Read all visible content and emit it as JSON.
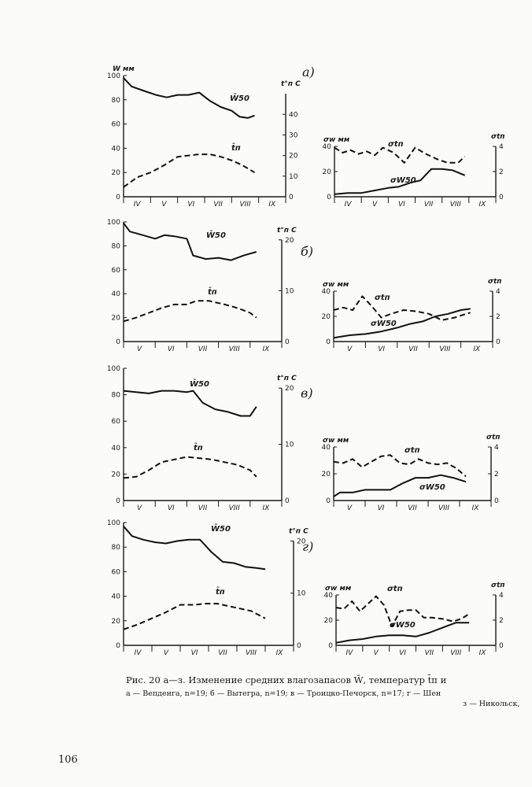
{
  "caption": {
    "line1": "Рис. 20 а—з. Изменение средних влагозапасов W̄, температур t̄п и",
    "line2": "а — Вепденга,  n=19;  б — Вытегра,  n=19;  в — Троицко-Печорск,  n=17;  г — Шен",
    "line3": "з — Никольск,"
  },
  "page_number": "106",
  "chart_data": [
    {
      "type": "line",
      "panel": "а",
      "side": "left",
      "title": "а)",
      "y_left_label": "W мм",
      "y_left_ticks": [
        "0",
        "20",
        "40",
        "60",
        "80",
        "100"
      ],
      "y_left_lim": [
        0,
        100
      ],
      "y_right_label": "t°п С",
      "y_right_ticks": [
        "0",
        "10",
        "20",
        "30",
        "40"
      ],
      "y_right_lim": [
        0,
        50
      ],
      "months": [
        "IV",
        "V",
        "VI",
        "VII",
        "VIII",
        "IX"
      ],
      "series": [
        {
          "name": "W50",
          "label": "W̄50",
          "style": "solid",
          "axis": "left",
          "x": [
            0,
            0.3,
            0.8,
            1.2,
            1.6,
            2,
            2.4,
            2.8,
            3.2,
            3.6,
            4,
            4.3,
            4.6,
            4.85
          ],
          "values": [
            98,
            91,
            87,
            84,
            82,
            84,
            84,
            86,
            79,
            74,
            71,
            66,
            65,
            67
          ]
        },
        {
          "name": "tp",
          "label": "t̄п",
          "style": "dashed",
          "axis": "left",
          "x": [
            0,
            0.5,
            1,
            1.5,
            2,
            2.4,
            2.8,
            3.2,
            3.6,
            4,
            4.4,
            4.85
          ],
          "values": [
            8,
            16,
            20,
            26,
            33,
            34,
            35,
            35,
            33,
            30,
            26,
            20
          ]
        }
      ]
    },
    {
      "type": "line",
      "panel": "а",
      "side": "right",
      "y_left_label": "σw мм",
      "y_left_ticks": [
        "0",
        "20",
        "40"
      ],
      "y_left_lim": [
        0,
        40
      ],
      "y_right_label": "σtп",
      "y_right_ticks": [
        "0",
        "2",
        "4"
      ],
      "y_right_lim": [
        0,
        4
      ],
      "months": [
        "IV",
        "V",
        "VI",
        "VII",
        "VIII",
        "IX"
      ],
      "series": [
        {
          "name": "sigma_W50",
          "label": "σW50",
          "style": "solid",
          "axis": "left",
          "x": [
            0,
            0.5,
            1,
            1.5,
            2,
            2.4,
            2.8,
            3.2,
            3.6,
            4,
            4.4,
            4.85
          ],
          "values": [
            2,
            3,
            3,
            5,
            7,
            8,
            11,
            13,
            22,
            22,
            21,
            17
          ]
        },
        {
          "name": "sigma_tp",
          "label": "σtп",
          "style": "dashed",
          "axis": "right",
          "x": [
            0,
            0.3,
            0.6,
            0.9,
            1.2,
            1.5,
            1.8,
            2.2,
            2.6,
            3,
            3.4,
            3.8,
            4.2,
            4.6,
            4.85
          ],
          "values": [
            3.9,
            3.5,
            3.7,
            3.4,
            3.6,
            3.3,
            3.9,
            3.5,
            2.7,
            3.9,
            3.4,
            3.0,
            2.7,
            2.7,
            3.2
          ]
        }
      ]
    },
    {
      "type": "line",
      "panel": "б",
      "side": "left",
      "title": "б)",
      "y_left_label": "",
      "y_left_ticks": [
        "0",
        "20",
        "40",
        "60",
        "80",
        "100"
      ],
      "y_left_lim": [
        0,
        100
      ],
      "y_right_label": "t°п С",
      "y_right_ticks": [
        "0",
        "10",
        "20"
      ],
      "y_right_lim": [
        0,
        20
      ],
      "months": [
        "V",
        "VI",
        "VII",
        "VIII",
        "IX"
      ],
      "series": [
        {
          "name": "W50",
          "label": "W̄50",
          "style": "solid",
          "axis": "left",
          "x": [
            0,
            0.2,
            0.6,
            1,
            1.3,
            1.6,
            2,
            2.2,
            2.6,
            3,
            3.4,
            3.8,
            4.2
          ],
          "values": [
            99,
            92,
            89,
            86,
            89,
            88,
            86,
            72,
            69,
            70,
            68,
            72,
            75
          ]
        },
        {
          "name": "tp",
          "label": "t̄п",
          "style": "dashed",
          "axis": "left",
          "x": [
            0,
            0.4,
            0.8,
            1.2,
            1.6,
            2,
            2.3,
            2.7,
            3.2,
            3.6,
            4,
            4.2
          ],
          "values": [
            17,
            20,
            24,
            28,
            31,
            31,
            34,
            34,
            31,
            28,
            24,
            20
          ]
        }
      ]
    },
    {
      "type": "line",
      "panel": "б",
      "side": "right",
      "y_left_label": "σw мм",
      "y_left_ticks": [
        "0",
        "20",
        "40"
      ],
      "y_left_lim": [
        0,
        40
      ],
      "y_right_label": "σtп",
      "y_right_ticks": [
        "0",
        "2",
        "4"
      ],
      "y_right_lim": [
        0,
        4
      ],
      "months": [
        "V",
        "VI",
        "VII",
        "VIII",
        "IX"
      ],
      "series": [
        {
          "name": "sigma_W50",
          "label": "σW50",
          "style": "solid",
          "axis": "left",
          "x": [
            0,
            0.5,
            1,
            1.5,
            2,
            2.4,
            2.8,
            3.2,
            3.6,
            4,
            4.3
          ],
          "values": [
            3,
            5,
            6,
            8,
            11,
            14,
            16,
            20,
            22,
            25,
            26
          ]
        },
        {
          "name": "sigma_tp",
          "label": "σtп",
          "style": "dashed",
          "axis": "right",
          "x": [
            0,
            0.3,
            0.6,
            0.9,
            1.2,
            1.5,
            1.8,
            2.2,
            2.6,
            3,
            3.4,
            3.8,
            4.3
          ],
          "values": [
            2.5,
            2.7,
            2.5,
            3.6,
            2.8,
            1.9,
            2.2,
            2.5,
            2.4,
            2.2,
            1.7,
            1.9,
            2.3
          ]
        }
      ]
    },
    {
      "type": "line",
      "panel": "в",
      "side": "left",
      "title": "в)",
      "y_left_label": "",
      "y_left_ticks": [
        "0",
        "20",
        "40",
        "60",
        "80",
        "100"
      ],
      "y_left_lim": [
        0,
        100
      ],
      "y_right_label": "t°п С",
      "y_right_ticks": [
        "0",
        "10",
        "20"
      ],
      "y_right_lim": [
        0,
        20
      ],
      "months": [
        "V",
        "VI",
        "VII",
        "VIII",
        "IX"
      ],
      "series": [
        {
          "name": "W50",
          "label": "W̄50",
          "style": "solid",
          "axis": "left",
          "x": [
            0,
            0.4,
            0.8,
            1.2,
            1.6,
            2,
            2.2,
            2.5,
            2.9,
            3.3,
            3.7,
            4,
            4.2
          ],
          "values": [
            83,
            82,
            81,
            83,
            83,
            82,
            83,
            74,
            69,
            67,
            64,
            64,
            71
          ]
        },
        {
          "name": "tp",
          "label": "t̄п",
          "style": "dashed",
          "axis": "left",
          "x": [
            0,
            0.4,
            0.8,
            1.2,
            1.6,
            2,
            2.4,
            2.8,
            3.2,
            3.6,
            4,
            4.2
          ],
          "values": [
            17,
            18,
            23,
            29,
            31,
            33,
            32,
            31,
            29,
            27,
            23,
            18
          ]
        }
      ]
    },
    {
      "type": "line",
      "panel": "в",
      "side": "right",
      "y_left_label": "σw мм",
      "y_left_ticks": [
        "0",
        "20",
        "40"
      ],
      "y_left_lim": [
        0,
        40
      ],
      "y_right_label": "σtп",
      "y_right_ticks": [
        "0",
        "2",
        "4"
      ],
      "y_right_lim": [
        0,
        4
      ],
      "months": [
        "V",
        "VI",
        "VII",
        "VIII",
        "IX"
      ],
      "series": [
        {
          "name": "sigma_W50",
          "label": "σW50",
          "style": "solid",
          "axis": "left",
          "x": [
            0,
            0.2,
            0.6,
            1,
            1.4,
            1.8,
            2.2,
            2.6,
            3,
            3.4,
            3.8,
            4.2
          ],
          "values": [
            3,
            6,
            6,
            8,
            8,
            8,
            13,
            17,
            17,
            19,
            17,
            14
          ]
        },
        {
          "name": "sigma_tp",
          "label": "σtп",
          "style": "dashed",
          "axis": "right",
          "x": [
            0,
            0.3,
            0.6,
            0.9,
            1.2,
            1.5,
            1.8,
            2.1,
            2.4,
            2.7,
            3,
            3.3,
            3.6,
            3.9,
            4.2
          ],
          "values": [
            2.9,
            2.8,
            3.1,
            2.5,
            2.9,
            3.3,
            3.4,
            2.8,
            2.7,
            3.1,
            2.8,
            2.7,
            2.8,
            2.4,
            1.8
          ]
        }
      ]
    },
    {
      "type": "line",
      "panel": "г",
      "side": "left",
      "title": "г)",
      "y_left_label": "",
      "y_left_ticks": [
        "0",
        "20",
        "40",
        "60",
        "80",
        "100"
      ],
      "y_left_lim": [
        0,
        100
      ],
      "y_right_label": "t°п С",
      "y_right_ticks": [
        "0",
        "10",
        "20"
      ],
      "y_right_lim": [
        0,
        20
      ],
      "months": [
        "IV",
        "V",
        "VI",
        "VII",
        "VIII",
        "IX"
      ],
      "series": [
        {
          "name": "W50",
          "label": "W̄50",
          "style": "solid",
          "axis": "left",
          "x": [
            0,
            0.3,
            0.7,
            1.1,
            1.5,
            1.9,
            2.3,
            2.7,
            3.1,
            3.5,
            3.9,
            4.3,
            4.7,
            5
          ],
          "values": [
            97,
            89,
            86,
            84,
            83,
            85,
            86,
            86,
            76,
            68,
            67,
            64,
            63,
            62
          ]
        },
        {
          "name": "tp",
          "label": "t̄п",
          "style": "dashed",
          "axis": "left",
          "x": [
            0,
            0.5,
            1,
            1.5,
            2,
            2.5,
            2.9,
            3.3,
            3.7,
            4.1,
            4.5,
            5
          ],
          "values": [
            13,
            17,
            22,
            27,
            33,
            33,
            34,
            34,
            32,
            30,
            28,
            22
          ]
        }
      ]
    },
    {
      "type": "line",
      "panel": "г",
      "side": "right",
      "y_left_label": "σw мм",
      "y_left_ticks": [
        "0",
        "20",
        "40"
      ],
      "y_left_lim": [
        0,
        40
      ],
      "y_right_label": "σtп",
      "y_right_ticks": [
        "0",
        "2",
        "4"
      ],
      "y_right_lim": [
        0,
        4
      ],
      "months": [
        "IV",
        "V",
        "VI",
        "VII",
        "VIII",
        "IX"
      ],
      "series": [
        {
          "name": "sigma_W50",
          "label": "σW50",
          "style": "solid",
          "axis": "left",
          "x": [
            0,
            0.5,
            1,
            1.5,
            2,
            2.5,
            3,
            3.5,
            4,
            4.5,
            5
          ],
          "values": [
            2,
            4,
            5,
            7,
            8,
            8,
            7,
            10,
            14,
            18,
            18
          ]
        },
        {
          "name": "sigma_tp",
          "label": "σtп",
          "style": "dashed",
          "axis": "right",
          "x": [
            0,
            0.3,
            0.6,
            0.9,
            1.2,
            1.5,
            1.8,
            2.1,
            2.4,
            2.7,
            3,
            3.3,
            3.6,
            4,
            4.4,
            4.7,
            5
          ],
          "values": [
            3.0,
            2.9,
            3.5,
            2.7,
            3.3,
            3.9,
            3.2,
            1.5,
            2.7,
            2.8,
            2.8,
            2.2,
            2.2,
            2.1,
            1.9,
            2.1,
            2.5
          ]
        }
      ]
    }
  ]
}
